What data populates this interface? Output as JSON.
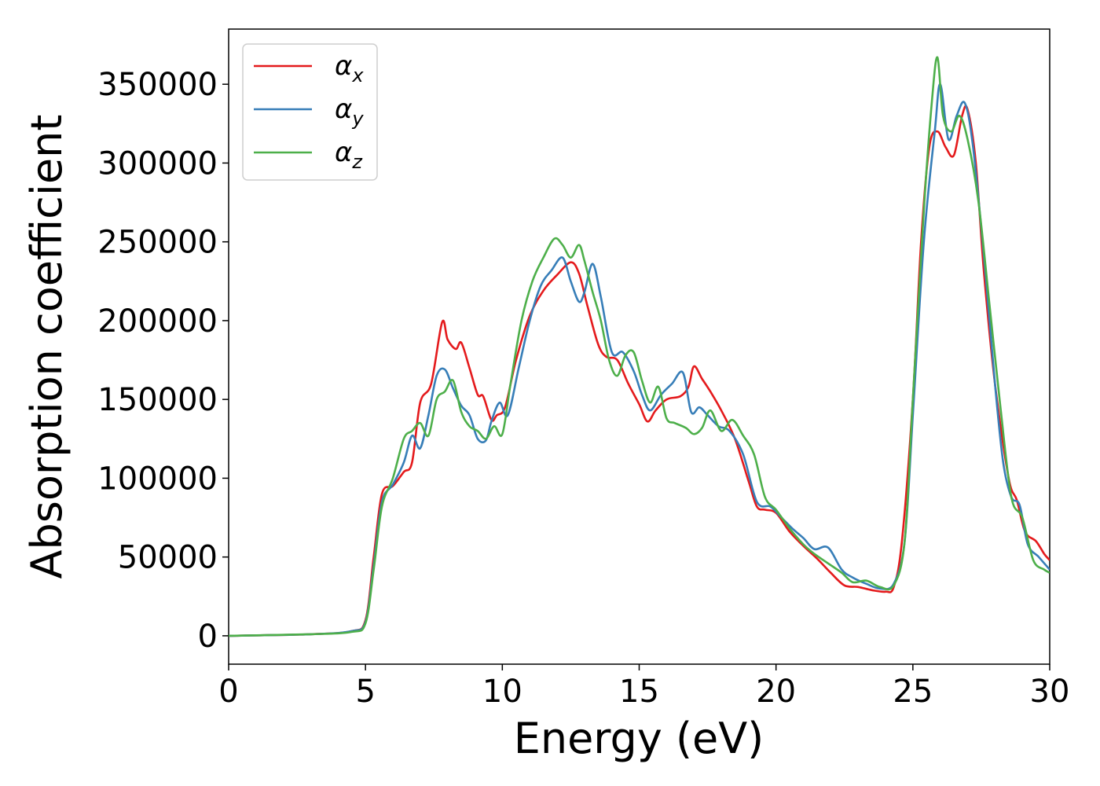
{
  "chart_data": {
    "type": "line",
    "title": "",
    "xlabel": "Energy (eV)",
    "ylabel": "Absorption coefficient",
    "xlim": [
      0,
      30
    ],
    "ylim": [
      -18000,
      385000
    ],
    "xticks": [
      0,
      5,
      10,
      15,
      20,
      25,
      30
    ],
    "xtick_labels": [
      "0",
      "5",
      "10",
      "15",
      "20",
      "25",
      "30"
    ],
    "yticks": [
      0,
      50000,
      100000,
      150000,
      200000,
      250000,
      300000,
      350000
    ],
    "ytick_labels": [
      "0",
      "50000",
      "100000",
      "150000",
      "200000",
      "250000",
      "300000",
      "350000"
    ],
    "grid": false,
    "legend_position": "top-left",
    "series": [
      {
        "name": "α_x",
        "label_main": "α",
        "label_sub": "x",
        "color": "#e41a1c",
        "x": [
          0,
          3,
          4.5,
          5,
          5.3,
          5.6,
          6.0,
          6.4,
          6.7,
          7.0,
          7.4,
          7.8,
          8.0,
          8.3,
          8.5,
          8.8,
          9.1,
          9.3,
          9.6,
          9.8,
          10.1,
          10.5,
          11.0,
          11.5,
          12.0,
          12.5,
          12.8,
          13.1,
          13.5,
          13.8,
          14.2,
          14.6,
          15.0,
          15.3,
          15.6,
          16.0,
          16.5,
          16.8,
          17.0,
          17.3,
          17.6,
          18.0,
          18.5,
          19.0,
          19.3,
          19.6,
          20.0,
          20.5,
          21.0,
          21.5,
          22.0,
          22.5,
          23.0,
          23.5,
          24.0,
          24.3,
          24.6,
          25.0,
          25.3,
          25.6,
          25.9,
          26.2,
          26.5,
          26.8,
          27.0,
          27.3,
          27.6,
          28.0,
          28.5,
          28.8,
          29.1,
          29.5,
          29.8,
          30.0
        ],
        "y": [
          0,
          1000,
          3000,
          10000,
          50000,
          90000,
          95000,
          104000,
          110000,
          148000,
          160000,
          199000,
          188000,
          182000,
          186000,
          170000,
          153000,
          152000,
          137000,
          140000,
          145000,
          175000,
          203000,
          219000,
          229000,
          237000,
          230000,
          210000,
          185000,
          177000,
          175000,
          160000,
          147000,
          136000,
          143000,
          150000,
          152000,
          158000,
          171000,
          163000,
          155000,
          143000,
          125000,
          98000,
          82000,
          80000,
          78000,
          66000,
          57000,
          49000,
          40000,
          32000,
          31000,
          29000,
          28000,
          31000,
          60000,
          150000,
          250000,
          310000,
          320000,
          310000,
          305000,
          330000,
          334000,
          300000,
          230000,
          160000,
          100000,
          86000,
          66000,
          60000,
          52000,
          48000
        ]
      },
      {
        "name": "α_y",
        "label_main": "α",
        "label_sub": "y",
        "color": "#377eb8",
        "x": [
          0,
          3,
          4.5,
          5,
          5.3,
          5.6,
          6.0,
          6.4,
          6.7,
          7.0,
          7.3,
          7.6,
          7.9,
          8.2,
          8.5,
          8.8,
          9.1,
          9.4,
          9.6,
          9.9,
          10.2,
          10.6,
          11.0,
          11.4,
          11.8,
          12.2,
          12.5,
          12.8,
          13.0,
          13.3,
          13.6,
          14.0,
          14.4,
          14.8,
          15.1,
          15.4,
          15.8,
          16.2,
          16.6,
          16.9,
          17.2,
          17.5,
          17.9,
          18.3,
          18.8,
          19.3,
          19.8,
          20.2,
          20.6,
          21.0,
          21.4,
          21.9,
          22.4,
          22.8,
          23.3,
          23.8,
          24.3,
          24.7,
          25.0,
          25.4,
          25.8,
          26.0,
          26.3,
          26.6,
          26.9,
          27.2,
          27.6,
          28.0,
          28.3,
          28.6,
          28.9,
          29.2,
          29.6,
          30.0
        ],
        "y": [
          0,
          1000,
          3000,
          9000,
          45000,
          85000,
          96000,
          110000,
          127000,
          119000,
          140000,
          165000,
          169000,
          157000,
          146000,
          140000,
          125000,
          124000,
          136000,
          148000,
          140000,
          170000,
          200000,
          222000,
          232000,
          240000,
          225000,
          212000,
          218000,
          236000,
          215000,
          180000,
          180000,
          168000,
          153000,
          143000,
          153000,
          160000,
          167000,
          142000,
          145000,
          140000,
          133000,
          130000,
          115000,
          85000,
          82000,
          75000,
          68000,
          62000,
          55000,
          56000,
          42000,
          37000,
          33000,
          30000,
          33000,
          60000,
          140000,
          250000,
          320000,
          350000,
          315000,
          330000,
          338000,
          310000,
          240000,
          160000,
          110000,
          88000,
          83000,
          58000,
          50000,
          42000
        ]
      },
      {
        "name": "α_z",
        "label_main": "α",
        "label_sub": "z",
        "color": "#4daf4a",
        "x": [
          0,
          3,
          4.5,
          5,
          5.3,
          5.6,
          6.0,
          6.4,
          6.7,
          7.0,
          7.3,
          7.6,
          7.9,
          8.2,
          8.5,
          8.8,
          9.1,
          9.4,
          9.7,
          10.0,
          10.3,
          10.7,
          11.1,
          11.5,
          11.9,
          12.2,
          12.5,
          12.8,
          13.0,
          13.3,
          13.6,
          13.9,
          14.2,
          14.5,
          14.8,
          15.1,
          15.4,
          15.7,
          16.0,
          16.3,
          16.7,
          17.0,
          17.3,
          17.6,
          18.0,
          18.4,
          18.8,
          19.2,
          19.6,
          20.0,
          20.5,
          21.0,
          21.4,
          21.9,
          22.4,
          22.8,
          23.3,
          23.8,
          24.3,
          24.7,
          25.0,
          25.4,
          25.7,
          25.9,
          26.1,
          26.4,
          26.7,
          27.0,
          27.4,
          27.8,
          28.2,
          28.6,
          29.0,
          29.4,
          29.8,
          30.0
        ],
        "y": [
          0,
          1000,
          2500,
          8000,
          42000,
          82000,
          100000,
          125000,
          130000,
          135000,
          127000,
          150000,
          155000,
          162000,
          142000,
          133000,
          130000,
          125000,
          133000,
          128000,
          160000,
          200000,
          225000,
          240000,
          252000,
          248000,
          240000,
          248000,
          238000,
          218000,
          200000,
          175000,
          165000,
          178000,
          180000,
          162000,
          148000,
          158000,
          138000,
          135000,
          132000,
          128000,
          132000,
          143000,
          130000,
          137000,
          127000,
          115000,
          88000,
          80000,
          68000,
          58000,
          52000,
          46000,
          40000,
          34000,
          35000,
          31000,
          32000,
          60000,
          150000,
          270000,
          340000,
          367000,
          330000,
          320000,
          330000,
          315000,
          275000,
          210000,
          145000,
          88000,
          75000,
          48000,
          42000,
          40000
        ]
      }
    ]
  }
}
